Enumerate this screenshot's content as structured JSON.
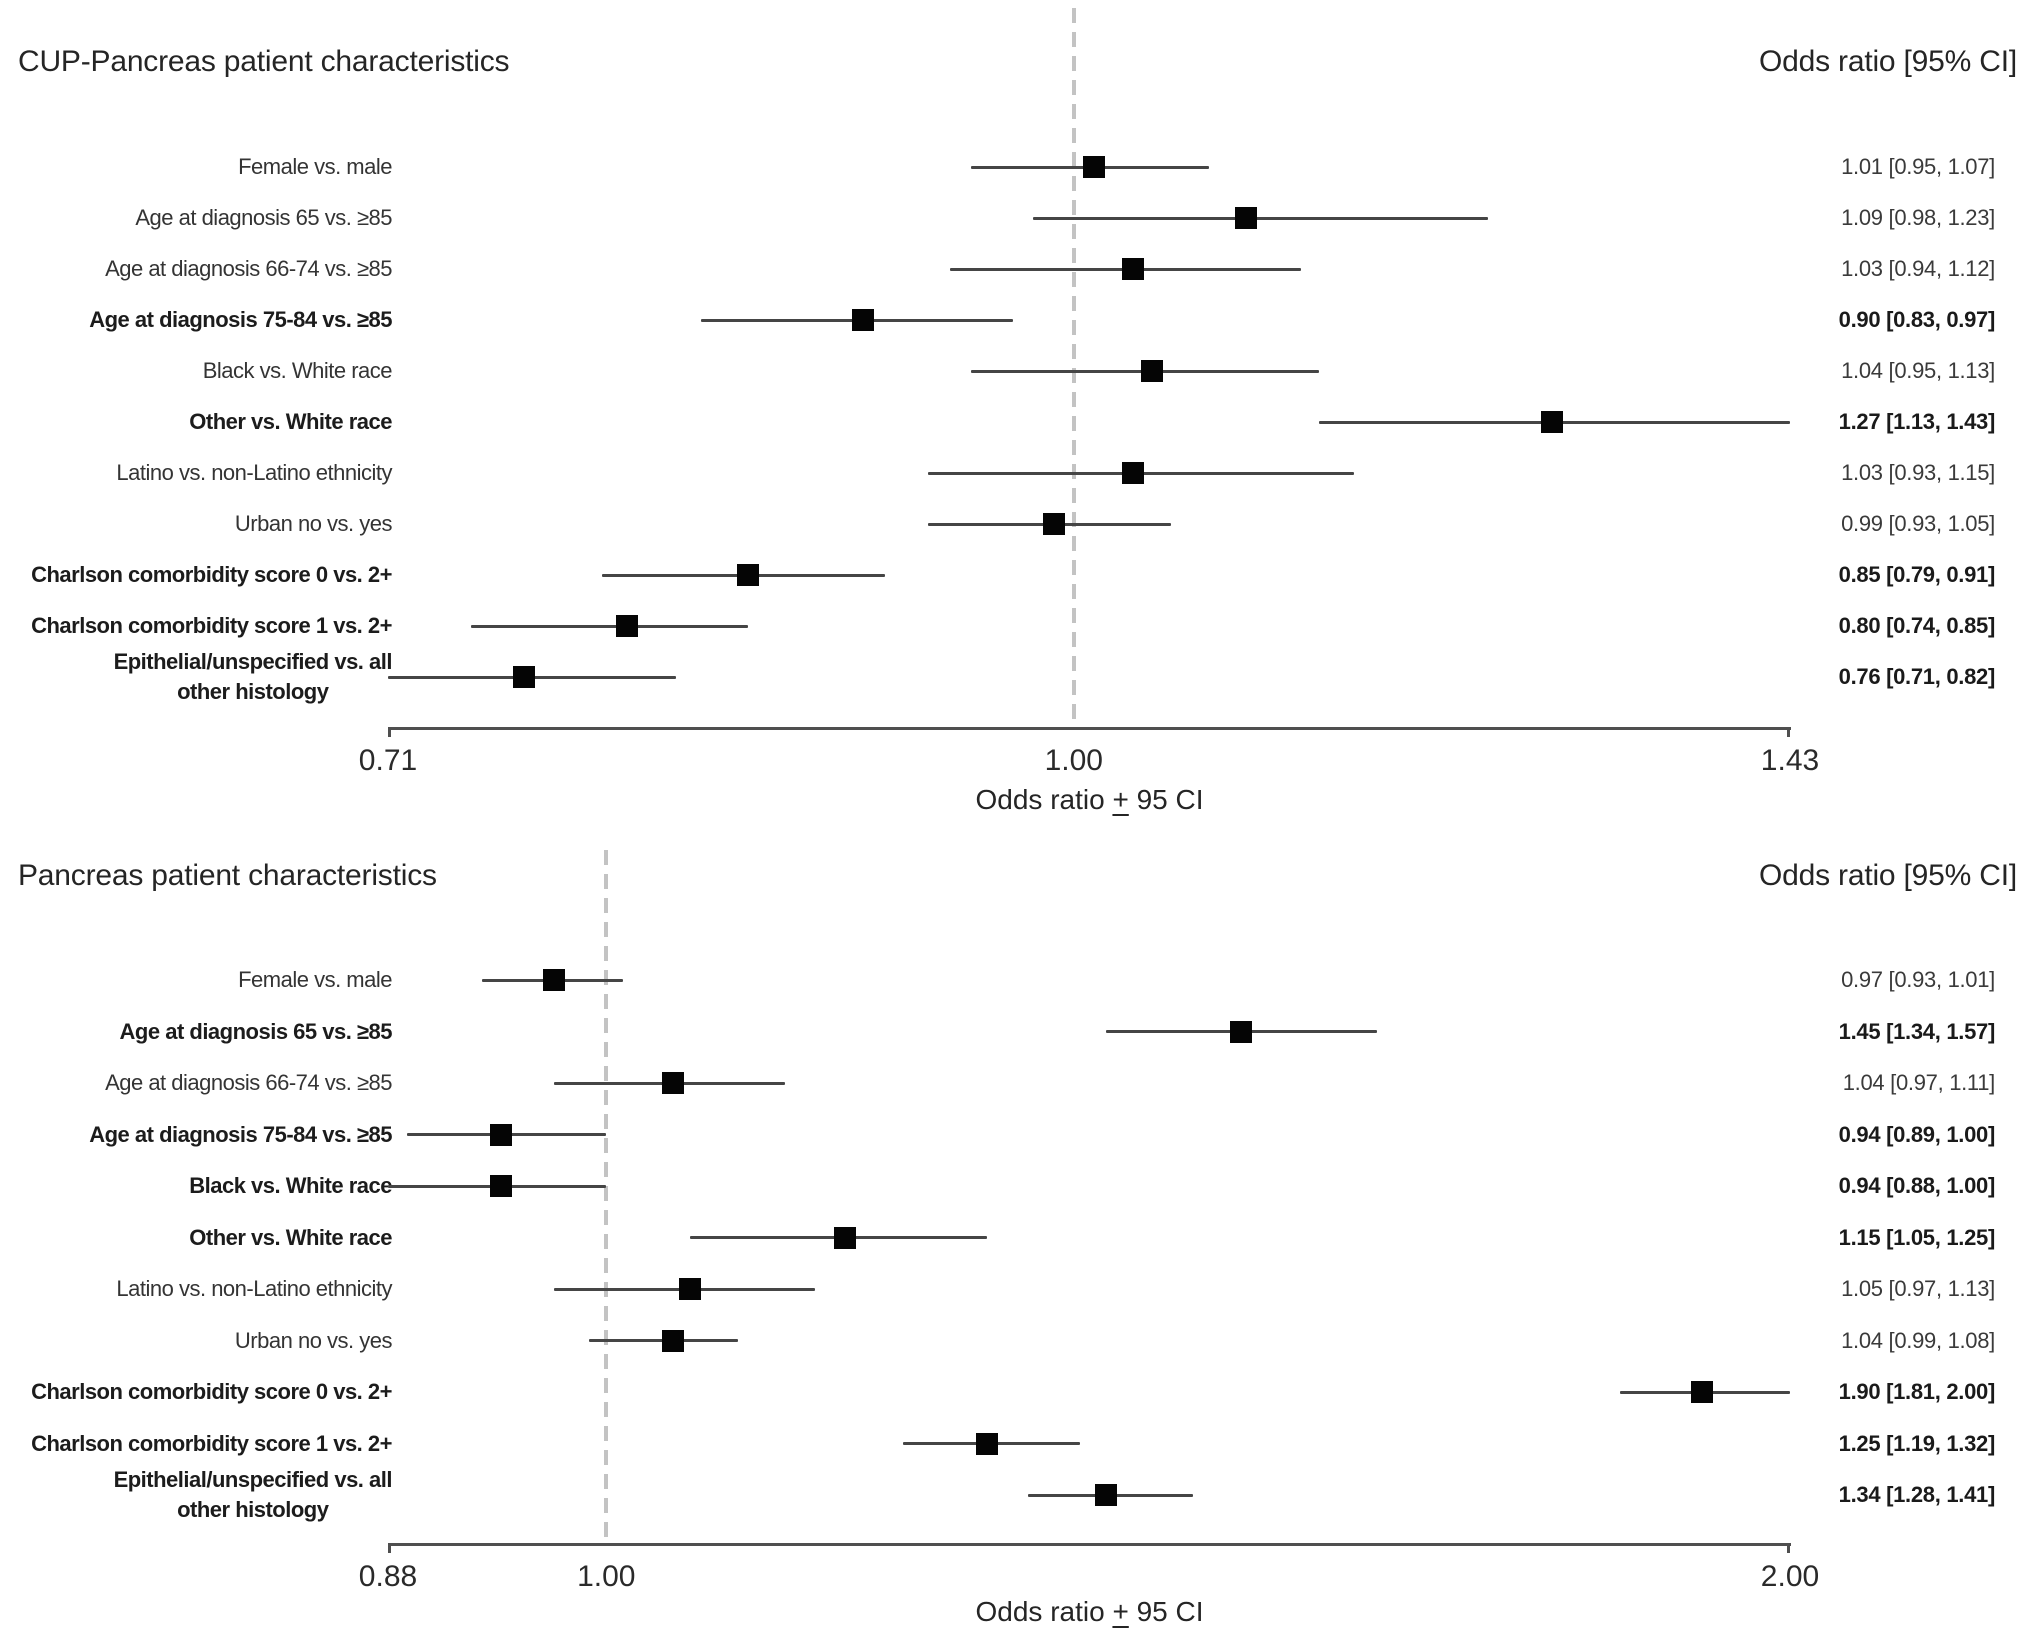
{
  "figure": {
    "background": "#ffffff",
    "colors": {
      "marker": "#050505",
      "ci_line": "#454545",
      "axis_line": "#4f4f4f",
      "reference_dash": "#c3c3c3",
      "text": "#232323"
    }
  },
  "chart_data": [
    {
      "type": "scatter",
      "subtype": "forest-plot",
      "title": "CUP-Pancreas patient characteristics",
      "or_header": "Odds ratio [95% CI]",
      "xlabel": {
        "prefix": "Odds ratio ",
        "pm": "+",
        "suffix": " 95 CI"
      },
      "axis": {
        "scale": "log",
        "min": 0.71,
        "max": 1.43,
        "ref": 1.0,
        "ticks": [
          {
            "value": 0.71,
            "label": "0.71"
          },
          {
            "value": 1.0,
            "label": "1.00"
          },
          {
            "value": 1.43,
            "label": "1.43"
          }
        ]
      },
      "rows": [
        {
          "label": "Female vs. male",
          "bold": false,
          "or": 1.01,
          "lo": 0.95,
          "hi": 1.07,
          "display": "1.01 [0.95, 1.07]"
        },
        {
          "label": "Age at diagnosis 65 vs. ≥85",
          "bold": false,
          "or": 1.09,
          "lo": 0.98,
          "hi": 1.23,
          "display": "1.09 [0.98, 1.23]"
        },
        {
          "label": "Age at diagnosis 66-74 vs. ≥85",
          "bold": false,
          "or": 1.03,
          "lo": 0.94,
          "hi": 1.12,
          "display": "1.03 [0.94, 1.12]"
        },
        {
          "label": "Age at diagnosis 75-84 vs. ≥85",
          "bold": true,
          "or": 0.9,
          "lo": 0.83,
          "hi": 0.97,
          "display": "0.90 [0.83, 0.97]"
        },
        {
          "label": "Black vs. White race",
          "bold": false,
          "or": 1.04,
          "lo": 0.95,
          "hi": 1.13,
          "display": "1.04 [0.95, 1.13]"
        },
        {
          "label": "Other vs. White race",
          "bold": true,
          "or": 1.27,
          "lo": 1.13,
          "hi": 1.43,
          "display": "1.27 [1.13, 1.43]"
        },
        {
          "label": "Latino vs. non-Latino ethnicity",
          "bold": false,
          "or": 1.03,
          "lo": 0.93,
          "hi": 1.15,
          "display": "1.03 [0.93, 1.15]"
        },
        {
          "label": "Urban no vs. yes",
          "bold": false,
          "or": 0.99,
          "lo": 0.93,
          "hi": 1.05,
          "display": "0.99 [0.93, 1.05]"
        },
        {
          "label": "Charlson comorbidity score 0 vs. 2+",
          "bold": true,
          "or": 0.85,
          "lo": 0.79,
          "hi": 0.91,
          "display": "0.85 [0.79, 0.91]"
        },
        {
          "label": "Charlson comorbidity score 1 vs. 2+",
          "bold": true,
          "or": 0.8,
          "lo": 0.74,
          "hi": 0.85,
          "display": "0.80 [0.74, 0.85]"
        },
        {
          "label_lines": [
            "Epithelial/unspecified vs. all",
            "other histology"
          ],
          "bold": true,
          "or": 0.76,
          "lo": 0.71,
          "hi": 0.82,
          "display": "0.76 [0.71, 0.82]"
        }
      ]
    },
    {
      "type": "scatter",
      "subtype": "forest-plot",
      "title": "Pancreas patient characteristics",
      "or_header": "Odds ratio [95% CI]",
      "xlabel": {
        "prefix": "Odds ratio ",
        "pm": "+",
        "suffix": " 95 CI"
      },
      "axis": {
        "scale": "log",
        "min": 0.88,
        "max": 2.0,
        "ref": 1.0,
        "ticks": [
          {
            "value": 0.88,
            "label": "0.88"
          },
          {
            "value": 1.0,
            "label": "1.00"
          },
          {
            "value": 2.0,
            "label": "2.00"
          }
        ]
      },
      "rows": [
        {
          "label": "Female vs. male",
          "bold": false,
          "or": 0.97,
          "lo": 0.93,
          "hi": 1.01,
          "display": "0.97 [0.93, 1.01]"
        },
        {
          "label": "Age at diagnosis 65 vs. ≥85",
          "bold": true,
          "or": 1.45,
          "lo": 1.34,
          "hi": 1.57,
          "display": "1.45 [1.34, 1.57]"
        },
        {
          "label": "Age at diagnosis 66-74 vs. ≥85",
          "bold": false,
          "or": 1.04,
          "lo": 0.97,
          "hi": 1.11,
          "display": "1.04 [0.97, 1.11]"
        },
        {
          "label": "Age at diagnosis 75-84 vs. ≥85",
          "bold": true,
          "or": 0.94,
          "lo": 0.89,
          "hi": 1.0,
          "display": "0.94 [0.89, 1.00]"
        },
        {
          "label": "Black vs. White race",
          "bold": true,
          "or": 0.94,
          "lo": 0.88,
          "hi": 1.0,
          "display": "0.94 [0.88, 1.00]"
        },
        {
          "label": "Other vs. White race",
          "bold": true,
          "or": 1.15,
          "lo": 1.05,
          "hi": 1.25,
          "display": "1.15 [1.05, 1.25]"
        },
        {
          "label": "Latino vs. non-Latino ethnicity",
          "bold": false,
          "or": 1.05,
          "lo": 0.97,
          "hi": 1.13,
          "display": "1.05 [0.97, 1.13]"
        },
        {
          "label": "Urban no vs. yes",
          "bold": false,
          "or": 1.04,
          "lo": 0.99,
          "hi": 1.08,
          "display": "1.04 [0.99, 1.08]"
        },
        {
          "label": "Charlson comorbidity score 0 vs. 2+",
          "bold": true,
          "or": 1.9,
          "lo": 1.81,
          "hi": 2.0,
          "display": "1.90 [1.81, 2.00]"
        },
        {
          "label": "Charlson comorbidity score 1 vs. 2+",
          "bold": true,
          "or": 1.25,
          "lo": 1.19,
          "hi": 1.32,
          "display": "1.25 [1.19, 1.32]"
        },
        {
          "label_lines": [
            "Epithelial/unspecified vs. all",
            "other histology"
          ],
          "bold": true,
          "or": 1.34,
          "lo": 1.28,
          "hi": 1.41,
          "display": "1.34 [1.28, 1.41]"
        }
      ]
    }
  ]
}
